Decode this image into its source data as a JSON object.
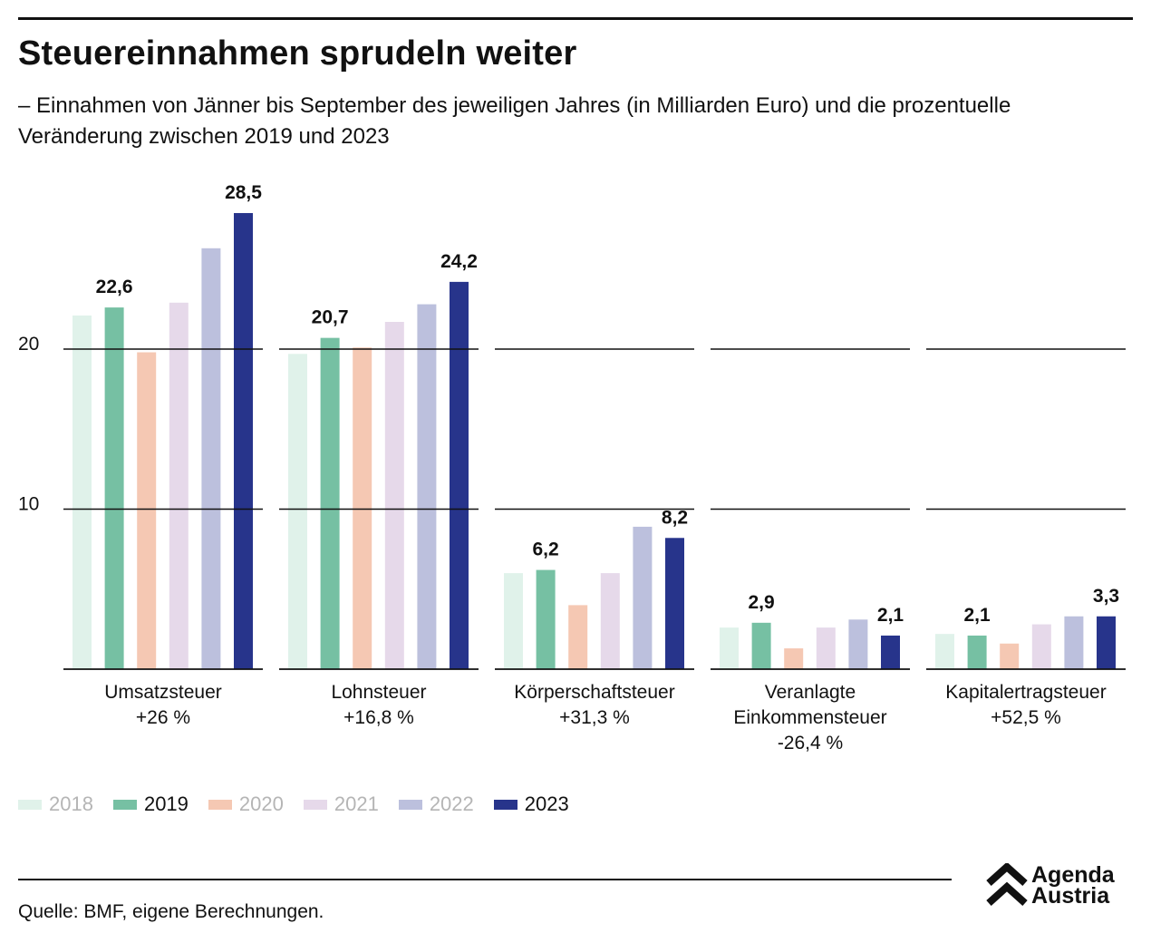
{
  "header": {
    "title": "Steuereinnahmen sprudeln weiter",
    "subtitle": "– Einnahmen von Jänner bis September des jeweiligen Jahres (in Milliarden Euro) und die prozentuelle Veränderung zwischen 2019 und 2023"
  },
  "chart_data": {
    "type": "bar",
    "title": "Steuereinnahmen sprudeln weiter",
    "ylim": [
      0,
      30
    ],
    "yticks": [
      10,
      20
    ],
    "grid": true,
    "legend_position": "bottom-left",
    "series_names": [
      "2018",
      "2019",
      "2020",
      "2021",
      "2022",
      "2023"
    ],
    "colors": [
      "#e0f2ea",
      "#76c0a3",
      "#f5c8b3",
      "#e6d9ea",
      "#bcc0dd",
      "#27348b"
    ],
    "legend_text_colors": [
      "#b5b5b5",
      "#111111",
      "#b5b5b5",
      "#b5b5b5",
      "#b5b5b5",
      "#111111"
    ],
    "groups": [
      {
        "label": [
          "Umsatzsteuer"
        ],
        "change": "+26 %",
        "values": [
          22.1,
          22.6,
          19.8,
          22.9,
          26.3,
          28.5
        ],
        "labels": [
          "",
          "22,6",
          "",
          "",
          "",
          "28,5"
        ]
      },
      {
        "label": [
          "Lohnsteuer"
        ],
        "change": "+16,8 %",
        "values": [
          19.7,
          20.7,
          20.1,
          21.7,
          22.8,
          24.2
        ],
        "labels": [
          "",
          "20,7",
          "",
          "",
          "",
          "24,2"
        ]
      },
      {
        "label": [
          "Körperschaftsteuer"
        ],
        "change": "+31,3 %",
        "values": [
          6.0,
          6.2,
          4.0,
          6.0,
          8.9,
          8.2
        ],
        "labels": [
          "",
          "6,2",
          "",
          "",
          "",
          "8,2"
        ]
      },
      {
        "label": [
          "Veranlagte",
          "Einkommensteuer"
        ],
        "change": "-26,4 %",
        "values": [
          2.6,
          2.9,
          1.3,
          2.6,
          3.1,
          2.1
        ],
        "labels": [
          "",
          "2,9",
          "",
          "",
          "",
          "2,1"
        ]
      },
      {
        "label": [
          "Kapitalertragsteuer"
        ],
        "change": "+52,5 %",
        "values": [
          2.2,
          2.1,
          1.6,
          2.8,
          3.3,
          3.3
        ],
        "labels": [
          "",
          "2,1",
          "",
          "",
          "",
          "3,3"
        ]
      }
    ]
  },
  "footer": {
    "source": "Quelle: BMF, eigene Berechnungen.",
    "brand_line1": "Agenda",
    "brand_line2": "Austria"
  }
}
